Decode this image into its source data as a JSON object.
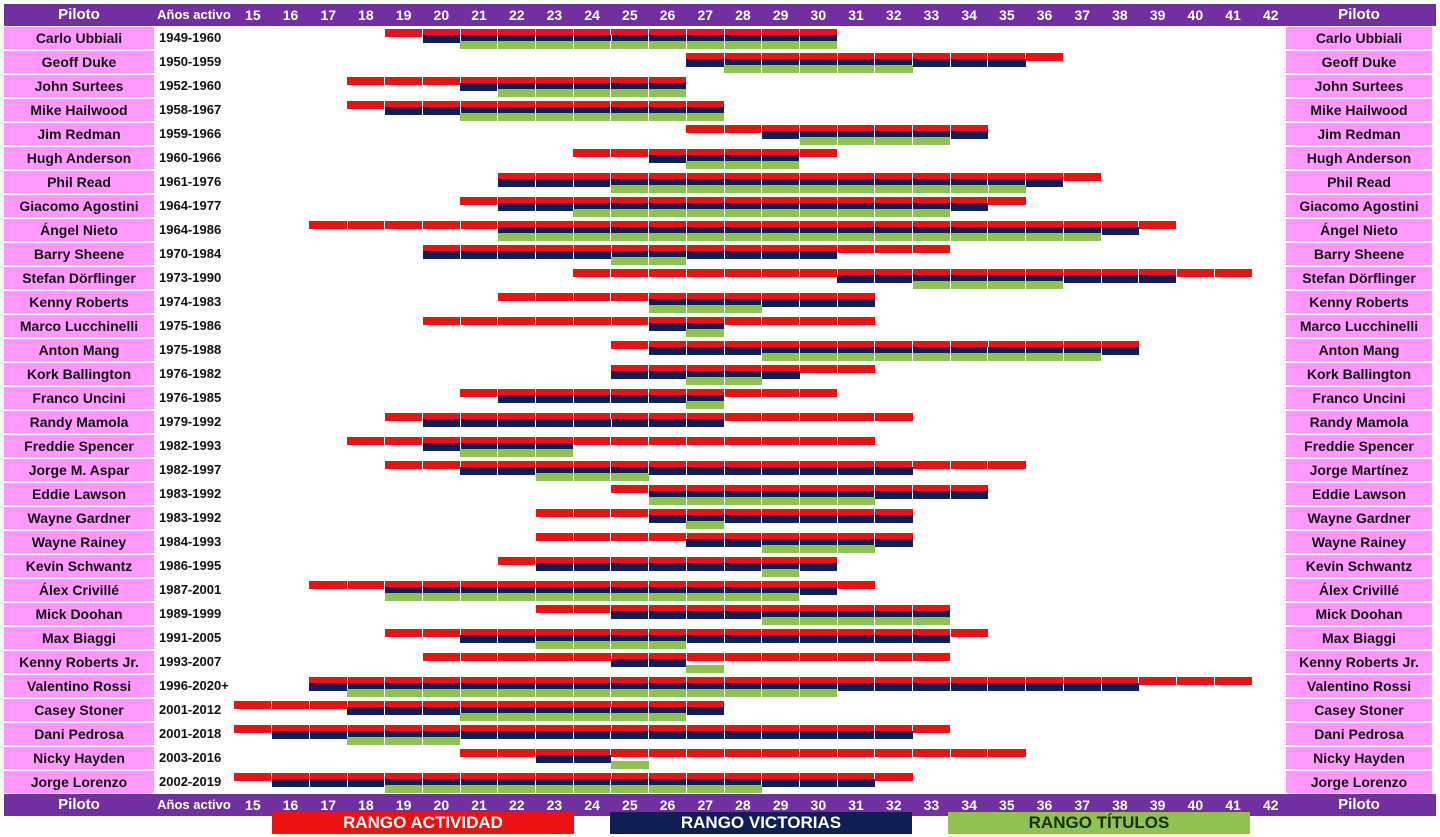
{
  "chart_data": {
    "type": "range-bar",
    "header": {
      "left_label": "Piloto",
      "years_label": "Años activo",
      "right_label": "Piloto"
    },
    "age_axis": [
      15,
      16,
      17,
      18,
      19,
      20,
      21,
      22,
      23,
      24,
      25,
      26,
      27,
      28,
      29,
      30,
      31,
      32,
      33,
      34,
      35,
      36,
      37,
      38,
      39,
      40,
      41,
      42
    ],
    "legend": [
      {
        "key": "activity",
        "label": "RANGO ACTIVIDAD",
        "color": "#ee1111",
        "text_color": "#ffffff"
      },
      {
        "key": "wins",
        "label": "RANGO VICTORIAS",
        "color": "#101e56",
        "text_color": "#ffffff"
      },
      {
        "key": "titles",
        "label": "RANGO TÍTULOS",
        "color": "#8fc250",
        "text_color": "#1a2e05"
      }
    ],
    "riders": [
      {
        "name": "Carlo Ubbiali",
        "years": "1949-1960",
        "right_name": "Carlo Ubbiali",
        "activity": [
          19,
          30
        ],
        "wins": [
          20,
          30
        ],
        "titles": [
          21,
          30
        ]
      },
      {
        "name": "Geoff Duke",
        "years": "1950-1959",
        "right_name": "Geoff Duke",
        "activity": [
          27,
          36
        ],
        "wins": [
          27,
          35
        ],
        "titles": [
          28,
          32
        ]
      },
      {
        "name": "John Surtees",
        "years": "1952-1960",
        "right_name": "John Surtees",
        "activity": [
          18,
          26
        ],
        "wins": [
          21,
          26
        ],
        "titles": [
          22,
          26
        ]
      },
      {
        "name": "Mike Hailwood",
        "years": "1958-1967",
        "right_name": "Mike Hailwood",
        "activity": [
          18,
          27
        ],
        "wins": [
          19,
          27
        ],
        "titles": [
          21,
          27
        ]
      },
      {
        "name": "Jim Redman",
        "years": "1959-1966",
        "right_name": "Jim Redman",
        "activity": [
          27,
          34
        ],
        "wins": [
          29,
          34
        ],
        "titles": [
          30,
          33
        ]
      },
      {
        "name": "Hugh Anderson",
        "years": "1960-1966",
        "right_name": "Hugh Anderson",
        "activity": [
          24,
          30
        ],
        "wins": [
          26,
          29
        ],
        "titles": [
          27,
          29
        ]
      },
      {
        "name": "Phil Read",
        "years": "1961-1976",
        "right_name": "Phil Read",
        "activity": [
          22,
          37
        ],
        "wins": [
          22,
          36
        ],
        "titles": [
          25,
          35
        ]
      },
      {
        "name": "Giacomo Agostini",
        "years": "1964-1977",
        "right_name": "Giacomo Agostini",
        "activity": [
          21,
          35
        ],
        "wins": [
          22,
          34
        ],
        "titles": [
          24,
          33
        ]
      },
      {
        "name": "Ángel Nieto",
        "years": "1964-1986",
        "right_name": "Ángel Nieto",
        "activity": [
          17,
          39
        ],
        "wins": [
          22,
          38
        ],
        "titles": [
          22,
          37
        ]
      },
      {
        "name": "Barry Sheene",
        "years": "1970-1984",
        "right_name": "Barry Sheene",
        "activity": [
          20,
          33
        ],
        "wins": [
          20,
          30
        ],
        "titles": [
          25,
          26
        ]
      },
      {
        "name": "Stefan Dörflinger",
        "years": "1973-1990",
        "right_name": "Stefan Dörflinger",
        "activity": [
          24,
          41
        ],
        "wins": [
          31,
          39
        ],
        "titles": [
          33,
          36
        ]
      },
      {
        "name": "Kenny Roberts",
        "years": "1974-1983",
        "right_name": "Kenny Roberts",
        "activity": [
          22,
          31
        ],
        "wins": [
          26,
          31
        ],
        "titles": [
          26,
          28
        ]
      },
      {
        "name": "Marco Lucchinelli",
        "years": "1975-1986",
        "right_name": "Marco Lucchinelli",
        "activity": [
          20,
          31
        ],
        "wins": [
          26,
          27
        ],
        "titles": [
          27,
          27
        ]
      },
      {
        "name": "Anton Mang",
        "years": "1975-1988",
        "right_name": "Anton Mang",
        "activity": [
          25,
          38
        ],
        "wins": [
          26,
          38
        ],
        "titles": [
          29,
          37
        ]
      },
      {
        "name": "Kork Ballington",
        "years": "1976-1982",
        "right_name": "Kork Ballington",
        "activity": [
          25,
          31
        ],
        "wins": [
          25,
          29
        ],
        "titles": [
          27,
          28
        ]
      },
      {
        "name": "Franco Uncini",
        "years": "1976-1985",
        "right_name": "Franco Uncini",
        "activity": [
          21,
          30
        ],
        "wins": [
          22,
          27
        ],
        "titles": [
          27,
          27
        ]
      },
      {
        "name": "Randy Mamola",
        "years": "1979-1992",
        "right_name": "Randy Mamola",
        "activity": [
          19,
          32
        ],
        "wins": [
          20,
          27
        ],
        "titles": []
      },
      {
        "name": "Freddie Spencer",
        "years": "1982-1993",
        "right_name": "Freddie Spencer",
        "activity": [
          18,
          31
        ],
        "wins": [
          20,
          23
        ],
        "titles": [
          21,
          23
        ]
      },
      {
        "name": "Jorge M. Aspar",
        "years": "1982-1997",
        "right_name": "Jorge Martínez",
        "activity": [
          19,
          35
        ],
        "wins": [
          21,
          32
        ],
        "titles": [
          23,
          25
        ]
      },
      {
        "name": "Eddie Lawson",
        "years": "1983-1992",
        "right_name": "Eddie Lawson",
        "activity": [
          25,
          34
        ],
        "wins": [
          26,
          34
        ],
        "titles": [
          26,
          31
        ]
      },
      {
        "name": "Wayne Gardner",
        "years": "1983-1992",
        "right_name": "Wayne Gardner",
        "activity": [
          23,
          32
        ],
        "wins": [
          26,
          32
        ],
        "titles": [
          27,
          27
        ]
      },
      {
        "name": "Wayne Rainey",
        "years": "1984-1993",
        "right_name": "Wayne Rainey",
        "activity": [
          23,
          32
        ],
        "wins": [
          27,
          32
        ],
        "titles": [
          29,
          31
        ]
      },
      {
        "name": "Kevin Schwantz",
        "years": "1986-1995",
        "right_name": "Kevin Schwantz",
        "activity": [
          22,
          30
        ],
        "wins": [
          23,
          30
        ],
        "titles": [
          29,
          29
        ]
      },
      {
        "name": "Álex Crivillé",
        "years": "1987-2001",
        "right_name": "Álex Crivillé",
        "activity": [
          17,
          31
        ],
        "wins": [
          19,
          30
        ],
        "titles": [
          19,
          29
        ]
      },
      {
        "name": "Mick Doohan",
        "years": "1989-1999",
        "right_name": "Mick Doohan",
        "activity": [
          23,
          33
        ],
        "wins": [
          25,
          33
        ],
        "titles": [
          29,
          33
        ]
      },
      {
        "name": "Max Biaggi",
        "years": "1991-2005",
        "right_name": "Max Biaggi",
        "activity": [
          19,
          34
        ],
        "wins": [
          21,
          33
        ],
        "titles": [
          23,
          26
        ]
      },
      {
        "name": "Kenny Roberts Jr.",
        "years": "1993-2007",
        "right_name": "Kenny Roberts Jr.",
        "activity": [
          20,
          33
        ],
        "wins": [
          25,
          26
        ],
        "titles": [
          27,
          27
        ]
      },
      {
        "name": "Valentino Rossi",
        "years": "1996-2020+",
        "right_name": "Valentino Rossi",
        "activity": [
          17,
          41
        ],
        "wins": [
          17,
          38
        ],
        "titles": [
          18,
          30
        ]
      },
      {
        "name": "Casey Stoner",
        "years": "2001-2012",
        "right_name": "Casey Stoner",
        "activity": [
          15,
          27
        ],
        "wins": [
          18,
          27
        ],
        "titles": [
          21,
          26
        ]
      },
      {
        "name": "Dani Pedrosa",
        "years": "2001-2018",
        "right_name": "Dani Pedrosa",
        "activity": [
          15,
          33
        ],
        "wins": [
          16,
          32
        ],
        "titles": [
          18,
          20
        ]
      },
      {
        "name": "Nicky Hayden",
        "years": "2003-2016",
        "right_name": "Nicky Hayden",
        "activity": [
          21,
          35
        ],
        "wins": [
          23,
          24
        ],
        "titles": [
          25,
          25
        ]
      },
      {
        "name": "Jorge Lorenzo",
        "years": "2002-2019",
        "right_name": "Jorge Lorenzo",
        "activity": [
          15,
          32
        ],
        "wins": [
          16,
          31
        ],
        "titles": [
          19,
          28
        ]
      }
    ]
  }
}
